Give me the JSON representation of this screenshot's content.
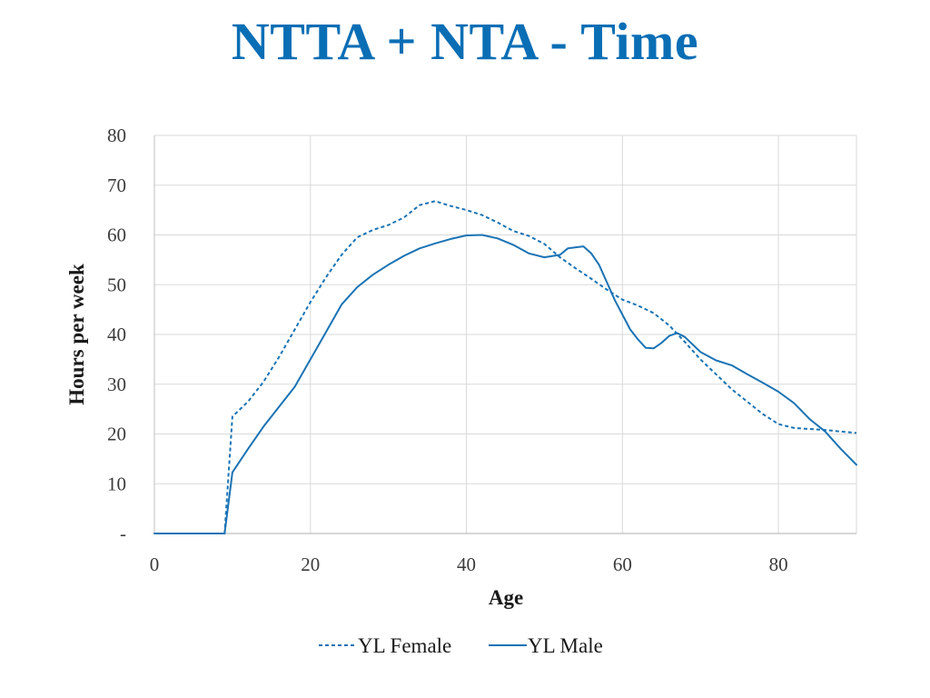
{
  "title": "NTTA + NTA - Time",
  "colors": {
    "title": "#0A6EB5",
    "series": "#1A73B4",
    "grid": "#d9d9d9",
    "axis": "#bfbfbf"
  },
  "chart_data": {
    "type": "line",
    "title": "NTTA + NTA - Time",
    "xlabel": "Age",
    "ylabel": "Hours per week",
    "xlim": [
      0,
      90
    ],
    "ylim": [
      0,
      80
    ],
    "x_ticks": [
      0,
      20,
      40,
      60,
      80
    ],
    "y_ticks": [
      0,
      10,
      20,
      30,
      40,
      50,
      60,
      70,
      80
    ],
    "y_tick_labels": [
      "-",
      "10",
      "20",
      "30",
      "40",
      "50",
      "60",
      "70",
      "80"
    ],
    "grid": true,
    "legend_position": "bottom",
    "series": [
      {
        "name": "YL Female",
        "style": "dashed",
        "points": [
          [
            0,
            0
          ],
          [
            9,
            0
          ],
          [
            10,
            23.5
          ],
          [
            12,
            26.5
          ],
          [
            14,
            30.5
          ],
          [
            16,
            35.5
          ],
          [
            18,
            41
          ],
          [
            20,
            46.5
          ],
          [
            22,
            51.5
          ],
          [
            24,
            56
          ],
          [
            26,
            59.5
          ],
          [
            28,
            61
          ],
          [
            30,
            62
          ],
          [
            32,
            63.5
          ],
          [
            34,
            66
          ],
          [
            36,
            66.8
          ],
          [
            38,
            65.8
          ],
          [
            40,
            65
          ],
          [
            42,
            64
          ],
          [
            44,
            62.5
          ],
          [
            46,
            60.8
          ],
          [
            48,
            59.8
          ],
          [
            50,
            58.2
          ],
          [
            52,
            55.5
          ],
          [
            54,
            53.3
          ],
          [
            56,
            51.2
          ],
          [
            58,
            49
          ],
          [
            60,
            47
          ],
          [
            62,
            45.8
          ],
          [
            64,
            44.3
          ],
          [
            66,
            41.8
          ],
          [
            68,
            38.5
          ],
          [
            70,
            35
          ],
          [
            72,
            32
          ],
          [
            74,
            29
          ],
          [
            76,
            26.5
          ],
          [
            78,
            24
          ],
          [
            80,
            22
          ],
          [
            82,
            21.2
          ],
          [
            84,
            21
          ],
          [
            86,
            20.8
          ],
          [
            88,
            20.5
          ],
          [
            90,
            20.2
          ]
        ]
      },
      {
        "name": "YL Male",
        "style": "solid",
        "points": [
          [
            0,
            0
          ],
          [
            9,
            0
          ],
          [
            10,
            12.3
          ],
          [
            12,
            17
          ],
          [
            14,
            21.5
          ],
          [
            16,
            25.5
          ],
          [
            18,
            29.5
          ],
          [
            20,
            35
          ],
          [
            22,
            40.5
          ],
          [
            24,
            46
          ],
          [
            26,
            49.5
          ],
          [
            28,
            52
          ],
          [
            30,
            54
          ],
          [
            32,
            55.8
          ],
          [
            34,
            57.3
          ],
          [
            36,
            58.3
          ],
          [
            38,
            59.2
          ],
          [
            40,
            59.9
          ],
          [
            42,
            60
          ],
          [
            44,
            59.3
          ],
          [
            46,
            58
          ],
          [
            48,
            56.3
          ],
          [
            50,
            55.5
          ],
          [
            52,
            56
          ],
          [
            53,
            57.3
          ],
          [
            55,
            57.7
          ],
          [
            56,
            56.3
          ],
          [
            57,
            54
          ],
          [
            58,
            50.5
          ],
          [
            59,
            47
          ],
          [
            60,
            44
          ],
          [
            61,
            41
          ],
          [
            62,
            39
          ],
          [
            63,
            37.3
          ],
          [
            64,
            37.2
          ],
          [
            65,
            38.3
          ],
          [
            66,
            39.7
          ],
          [
            67,
            40.3
          ],
          [
            68,
            39.5
          ],
          [
            69,
            38
          ],
          [
            70,
            36.5
          ],
          [
            72,
            34.8
          ],
          [
            74,
            33.8
          ],
          [
            76,
            32
          ],
          [
            78,
            30.3
          ],
          [
            80,
            28.5
          ],
          [
            82,
            26.2
          ],
          [
            84,
            23
          ],
          [
            86,
            20.5
          ],
          [
            88,
            17
          ],
          [
            90,
            13.8
          ]
        ]
      }
    ]
  }
}
